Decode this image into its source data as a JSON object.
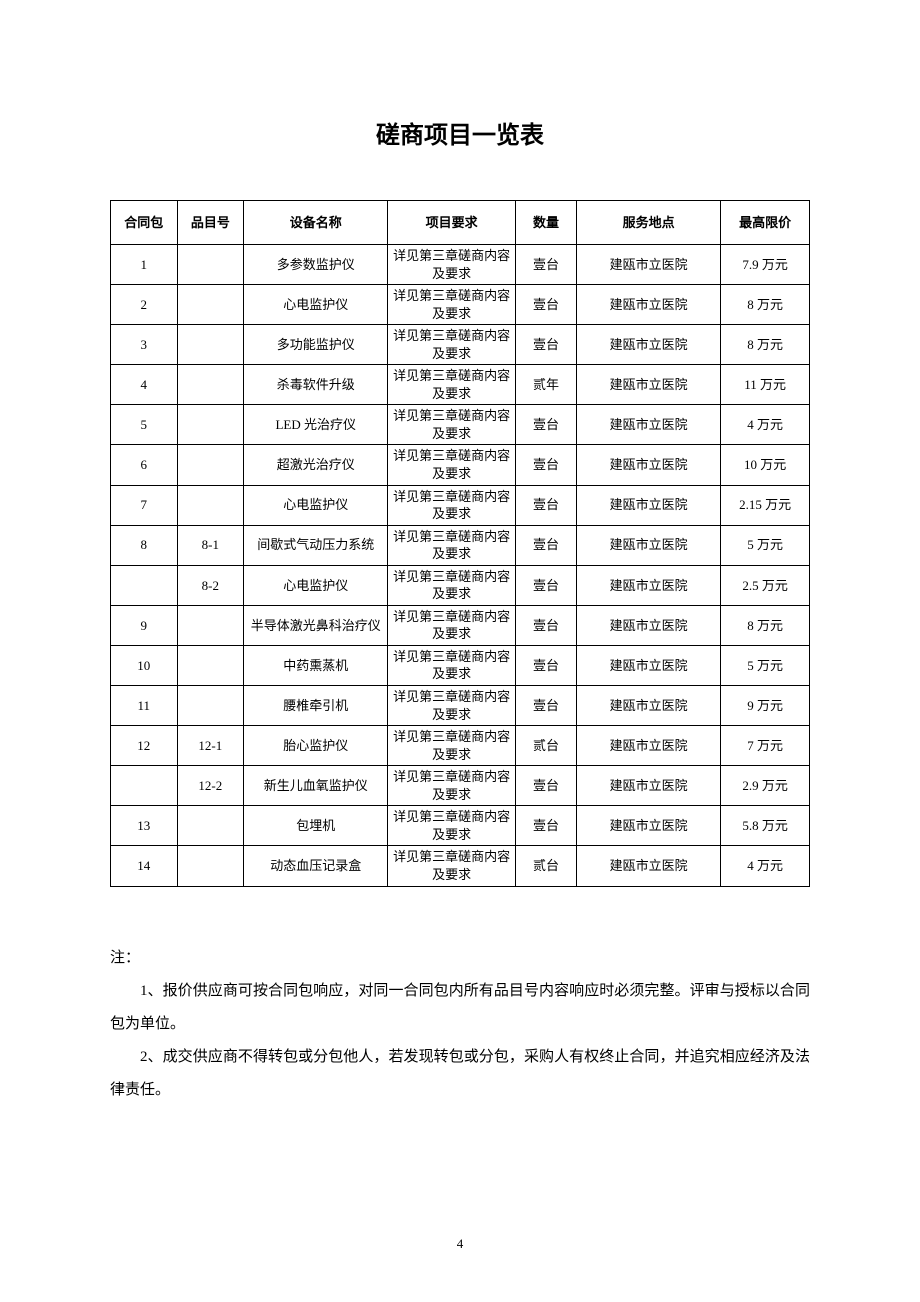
{
  "title": "磋商项目一览表",
  "headers": {
    "contract": "合同包",
    "item": "品目号",
    "name": "设备名称",
    "requirement": "项目要求",
    "quantity": "数量",
    "location": "服务地点",
    "price": "最高限价"
  },
  "req_text": "详见第三章磋商内容及要求",
  "loc_text": "建瓯市立医院",
  "rows": [
    {
      "contract": "1",
      "item": "",
      "name": "多参数监护仪",
      "qty": "壹台",
      "price": "7.9 万元"
    },
    {
      "contract": "2",
      "item": "",
      "name": "心电监护仪",
      "qty": "壹台",
      "price": "8 万元"
    },
    {
      "contract": "3",
      "item": "",
      "name": "多功能监护仪",
      "qty": "壹台",
      "price": "8 万元"
    },
    {
      "contract": "4",
      "item": "",
      "name": "杀毒软件升级",
      "qty": "贰年",
      "price": "11 万元"
    },
    {
      "contract": "5",
      "item": "",
      "name": "LED 光治疗仪",
      "qty": "壹台",
      "price": "4 万元"
    },
    {
      "contract": "6",
      "item": "",
      "name": "超激光治疗仪",
      "qty": "壹台",
      "price": "10 万元"
    },
    {
      "contract": "7",
      "item": "",
      "name": "心电监护仪",
      "qty": "壹台",
      "price": "2.15 万元"
    },
    {
      "contract": "8",
      "item": "8-1",
      "name": "间歇式气动压力系统",
      "qty": "壹台",
      "price": "5 万元"
    },
    {
      "contract": "",
      "item": "8-2",
      "name": "心电监护仪",
      "qty": "壹台",
      "price": "2.5 万元"
    },
    {
      "contract": "9",
      "item": "",
      "name": "半导体激光鼻科治疗仪",
      "qty": "壹台",
      "price": "8 万元"
    },
    {
      "contract": "10",
      "item": "",
      "name": "中药熏蒸机",
      "qty": "壹台",
      "price": "5 万元"
    },
    {
      "contract": "11",
      "item": "",
      "name": "腰椎牵引机",
      "qty": "壹台",
      "price": "9 万元"
    },
    {
      "contract": "12",
      "item": "12-1",
      "name": "胎心监护仪",
      "qty": "贰台",
      "price": "7 万元"
    },
    {
      "contract": "",
      "item": "12-2",
      "name": "新生儿血氧监护仪",
      "qty": "壹台",
      "price": "2.9 万元"
    },
    {
      "contract": "13",
      "item": "",
      "name": "包埋机",
      "qty": "壹台",
      "price": "5.8 万元"
    },
    {
      "contract": "14",
      "item": "",
      "name": "动态血压记录盒",
      "qty": "贰台",
      "price": "4 万元"
    }
  ],
  "notes": {
    "label": "注：",
    "n1": "1、报价供应商可按合同包响应，对同一合同包内所有品目号内容响应时必须完整。评审与授标以合同包为单位。",
    "n2": "2、成交供应商不得转包或分包他人，若发现转包或分包，采购人有权终止合同，并追究相应经济及法律责任。"
  },
  "page_number": "4",
  "styles": {
    "page_bg": "#ffffff",
    "border_color": "#000000",
    "title_fontsize": 24,
    "body_fontsize": 13,
    "notes_fontsize": 15
  }
}
